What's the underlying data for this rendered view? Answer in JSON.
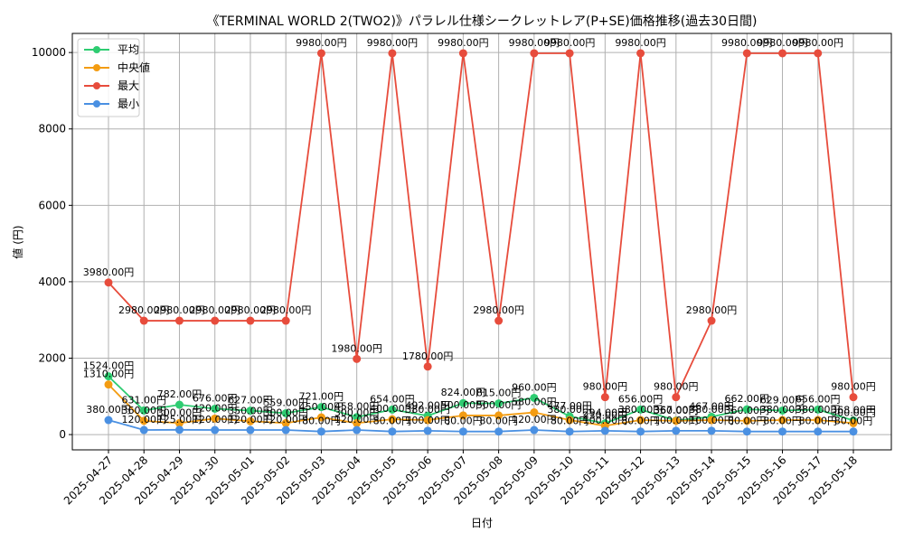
{
  "chart_data": {
    "type": "line",
    "title": "《TERMINAL WORLD 2(TWO2)》パラレル仕様シークレットレア(P+SE)価格推移(過去30日間)",
    "xlabel": "日付",
    "ylabel": "値 (円)",
    "ylim": [
      -400,
      10500
    ],
    "yticks": [
      0,
      2000,
      4000,
      6000,
      8000,
      10000
    ],
    "grid": true,
    "legend_position": "top-left",
    "categories": [
      "2025-04-27",
      "2025-04-28",
      "2025-04-29",
      "2025-04-30",
      "2025-05-01",
      "2025-05-02",
      "2025-05-03",
      "2025-05-04",
      "2025-05-05",
      "2025-05-06",
      "2025-05-07",
      "2025-05-08",
      "2025-05-09",
      "2025-05-10",
      "2025-05-11",
      "2025-05-12",
      "2025-05-13",
      "2025-05-14",
      "2025-05-15",
      "2025-05-16",
      "2025-05-17",
      "2025-05-18"
    ],
    "label_suffix": "円",
    "series": [
      {
        "name": "平均",
        "color": "#2ecc71",
        "values": [
          1524,
          631,
          782,
          676,
          627,
          559,
          721,
          458,
          654,
          492,
          824,
          815,
          960,
          477,
          294,
          656,
          367,
          467,
          662,
          629,
          656,
          368
        ]
      },
      {
        "name": "中央値",
        "color": "#f39c12",
        "values": [
          1310,
          360,
          300,
          420,
          350,
          300,
          450,
          300,
          400,
          380,
          500,
          500,
          580,
          380,
          230,
          380,
          360,
          380,
          360,
          380,
          380,
          300
        ]
      },
      {
        "name": "最大",
        "color": "#e74c3c",
        "values": [
          3980,
          2980,
          2980,
          2980,
          2980,
          2980,
          9980,
          1980,
          9980,
          1780,
          9980,
          2980,
          9980,
          9980,
          980,
          9980,
          980,
          2980,
          9980,
          9980,
          9980,
          980
        ]
      },
      {
        "name": "最小",
        "color": "#4a90e2",
        "values": [
          380,
          120,
          125,
          120,
          120,
          120,
          80,
          120,
          80,
          100,
          80,
          80,
          120,
          80,
          100,
          80,
          100,
          100,
          80,
          80,
          80,
          80
        ]
      }
    ]
  }
}
